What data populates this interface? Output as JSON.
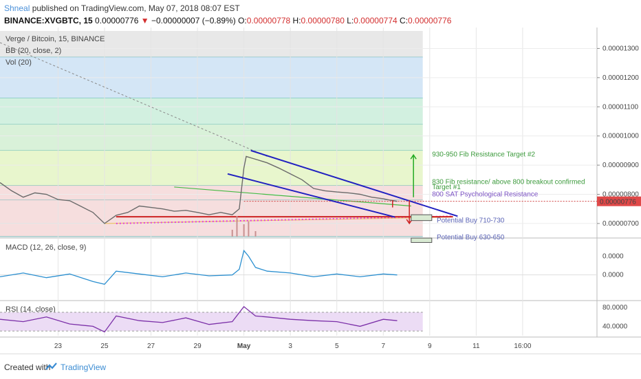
{
  "header": {
    "author": "Shneal",
    "published": " published on TradingView.com, May 07, 2018 08:07 EST",
    "symbol": "BINANCE:XVGBTC, 15",
    "last": " 0.00000776",
    "arrow": "▼",
    "change": " −0.00000007 (−0.89%)",
    "o_label": " O:",
    "o_val": "0.00000778",
    "h_label": " H:",
    "h_val": "0.00000780",
    "l_label": " L:",
    "l_val": "0.00000774",
    "c_label": " C:",
    "c_val": "0.00000776"
  },
  "footer": {
    "created": "Created with",
    "brand": "TradingView"
  },
  "chart_data": {
    "type": "line",
    "panes": {
      "price": {
        "labels": [
          "Verge / Bitcoin, 15, BINANCE",
          "BB (20, close, 2)",
          "Vol (20)"
        ],
        "y_ticks": [
          "0.00001300",
          "0.00001200",
          "0.00001100",
          "0.00001000",
          "0.00000900",
          "0.00000800",
          "0.00000700"
        ],
        "y_tick_values": [
          1300,
          1200,
          1100,
          1000,
          900,
          800,
          700
        ],
        "ylim": [
          655,
          1360
        ],
        "last_price_tag": "0.00000776",
        "last_price": 776
      },
      "macd": {
        "label": "MACD (12, 26, close, 9)",
        "y_ticks": [
          "0.0000",
          "0.0000"
        ],
        "y_tick_values": [
          1.0,
          0.0
        ],
        "ylim": [
          -1.3,
          1.9
        ]
      },
      "rsi": {
        "label": "RSI (14, close)",
        "y_ticks": [
          "80.0000",
          "40.0000"
        ],
        "y_tick_values": [
          80,
          40
        ],
        "band": [
          70,
          30
        ],
        "ylim": [
          20,
          92
        ]
      }
    },
    "x_ticks": [
      "23",
      "25",
      "27",
      "29",
      "May",
      "3",
      "5",
      "7",
      "9",
      "11",
      "16:00"
    ],
    "x_tick_values": [
      0,
      2,
      4,
      6,
      8,
      10,
      12,
      14,
      16,
      18,
      20
    ],
    "xlim": [
      -2.5,
      23.2
    ],
    "last_x": 14.6,
    "fib_band_x": [
      -2.5,
      15.7
    ],
    "fib_levels": [
      1360,
      1270,
      1130,
      1040,
      950,
      830,
      780,
      700,
      655
    ],
    "fib_colors": [
      "#e6e6e6",
      "#cfe3f5",
      "#cdeedd",
      "#d5f0d5",
      "#e6f5c8",
      "#f5dada",
      "#f5dada",
      "#f5dada"
    ],
    "price_series": {
      "name": "XVGBTC",
      "x": [
        -2.5,
        -2,
        -1.5,
        -1,
        -0.5,
        0,
        0.5,
        1,
        1.5,
        2,
        2.5,
        3,
        3.5,
        4,
        4.5,
        5,
        5.5,
        6,
        6.5,
        7,
        7.5,
        7.8,
        8,
        8.1,
        8.3,
        8.6,
        9,
        9.5,
        10,
        10.5,
        11,
        11.5,
        12,
        12.5,
        13,
        13.5,
        14,
        14.3,
        14.6
      ],
      "y": [
        840,
        812,
        790,
        805,
        800,
        782,
        778,
        758,
        738,
        700,
        728,
        738,
        760,
        755,
        750,
        742,
        745,
        738,
        730,
        738,
        730,
        750,
        890,
        930,
        925,
        918,
        908,
        890,
        870,
        850,
        820,
        812,
        808,
        805,
        800,
        790,
        785,
        780,
        776
      ]
    },
    "macd_series": {
      "name": "MACD",
      "x": [
        -2.5,
        -1.5,
        -0.5,
        0.5,
        1.5,
        2,
        2.5,
        3.5,
        4.5,
        5.5,
        6.5,
        7.5,
        7.8,
        8,
        8.2,
        8.5,
        9,
        10,
        11,
        12,
        13,
        14,
        14.6
      ],
      "y": [
        -0.1,
        0.1,
        -0.15,
        0.05,
        -0.35,
        -0.5,
        0.2,
        0.05,
        -0.1,
        0.1,
        -0.05,
        0.0,
        0.3,
        1.3,
        1.0,
        0.4,
        0.2,
        0.1,
        -0.1,
        0.05,
        -0.1,
        0.05,
        0.0
      ]
    },
    "rsi_series": {
      "name": "RSI",
      "x": [
        -2.5,
        -1.5,
        -0.5,
        0.5,
        1.5,
        2,
        2.5,
        3.5,
        4.5,
        5.5,
        6.5,
        7.5,
        8,
        8.5,
        9,
        10,
        11,
        12,
        13,
        14,
        14.6
      ],
      "y": [
        55,
        50,
        60,
        45,
        40,
        28,
        62,
        52,
        48,
        58,
        44,
        50,
        82,
        62,
        60,
        55,
        52,
        50,
        40,
        55,
        52
      ]
    },
    "annotations": [
      {
        "text": "930-950 Fib Resistance Target #2",
        "color": "#3c9a3c"
      },
      {
        "text": "830 Fib resistance/ above 800 breakout confirmed",
        "color": "#3c9a3c"
      },
      {
        "text": "Target #1",
        "color": "#3c9a3c"
      },
      {
        "text": "800 SAT Psychological Resistance",
        "color": "#7b52c4"
      },
      {
        "text": "Potential Buy 710-730",
        "color": "#5a63b5"
      },
      {
        "text": "Potential Buy 630-650",
        "color": "#5a63b5"
      }
    ]
  }
}
